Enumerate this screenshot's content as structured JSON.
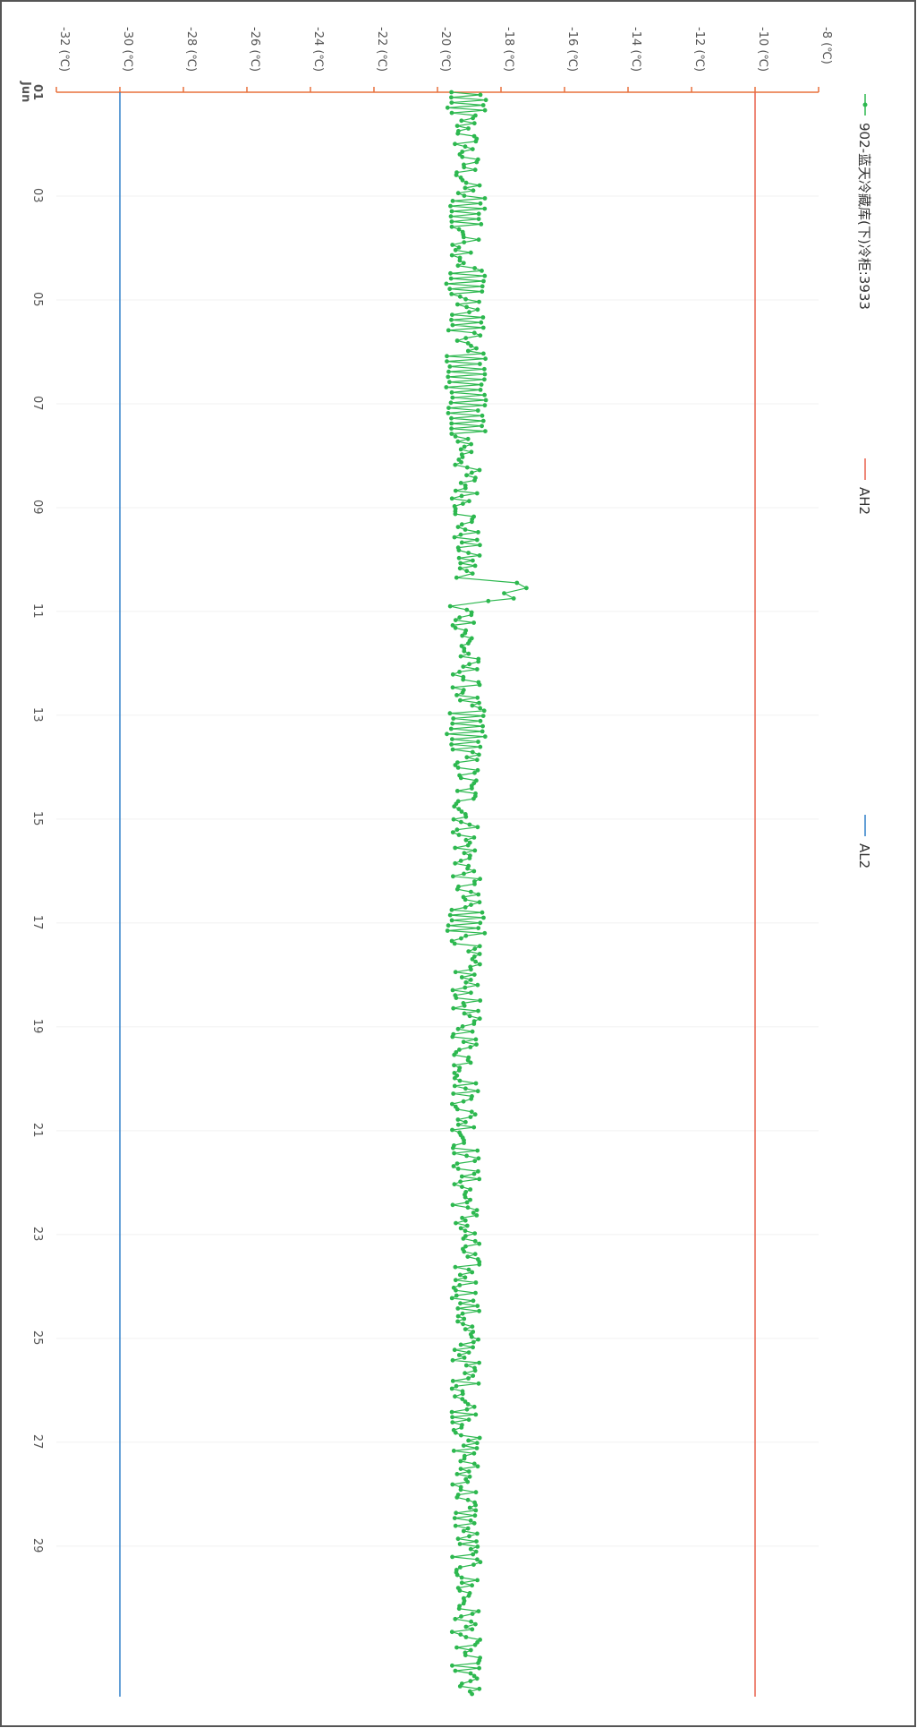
{
  "chart_data": {
    "type": "line",
    "orientation": "rotated-90-clockwise",
    "x_axis": {
      "ticks": [
        {
          "day": 1,
          "label": "01",
          "sublabel": "Jun"
        },
        {
          "day": 3,
          "label": "03"
        },
        {
          "day": 5,
          "label": "05"
        },
        {
          "day": 7,
          "label": "07"
        },
        {
          "day": 9,
          "label": "09"
        },
        {
          "day": 11,
          "label": "11"
        },
        {
          "day": 13,
          "label": "13"
        },
        {
          "day": 15,
          "label": "15"
        },
        {
          "day": 17,
          "label": "17"
        },
        {
          "day": 19,
          "label": "19"
        },
        {
          "day": 21,
          "label": "21"
        },
        {
          "day": 23,
          "label": "23"
        },
        {
          "day": 25,
          "label": "25"
        },
        {
          "day": 27,
          "label": "27"
        },
        {
          "day": 29,
          "label": "29"
        }
      ],
      "range": [
        1,
        31.9
      ]
    },
    "y_axis": {
      "ticks": [
        {
          "value": -32,
          "label": "-32 (℃)"
        },
        {
          "value": -30,
          "label": "-30 (℃)"
        },
        {
          "value": -28,
          "label": "-28 (℃)"
        },
        {
          "value": -26,
          "label": "-26 (℃)"
        },
        {
          "value": -24,
          "label": "-24 (℃)"
        },
        {
          "value": -22,
          "label": "-22 (℃)"
        },
        {
          "value": -20,
          "label": "-20 (℃)"
        },
        {
          "value": -18,
          "label": "-18 (℃)"
        },
        {
          "value": -16,
          "label": "-16 (℃)"
        },
        {
          "value": -14,
          "label": "-14 (℃)"
        },
        {
          "value": -12,
          "label": "-12 (℃)"
        },
        {
          "value": -10,
          "label": "-10 (℃)"
        },
        {
          "value": -8,
          "label": "-8 (℃)"
        }
      ],
      "range": [
        -32,
        -8
      ]
    },
    "grid": true,
    "legend": {
      "placement": "top",
      "entries": [
        {
          "name": "902-蓝天冷藏库(下)冷柜:3933",
          "color": "#2db84f",
          "marker": "dot"
        },
        {
          "name": "AH2",
          "color": "#e8604c",
          "marker": "line"
        },
        {
          "name": "AL2",
          "color": "#2f7fc8",
          "marker": "line"
        }
      ]
    },
    "series": [
      {
        "name": "902-蓝天冷藏库(下)冷柜:3933",
        "color": "#2db84f",
        "generated": {
          "x_start": 1.0,
          "x_end": 31.85,
          "points": 620,
          "baseline": -19.1,
          "amplitude": 0.45,
          "dense_segments": [
            [
              1.0,
              1.4
            ],
            [
              3.0,
              3.6
            ],
            [
              4.4,
              4.9
            ],
            [
              5.3,
              5.6
            ],
            [
              6.0,
              7.6
            ],
            [
              12.9,
              13.7
            ],
            [
              16.7,
              17.2
            ]
          ],
          "spike": [
            {
              "x": 10.35,
              "y": -19.4
            },
            {
              "x": 10.45,
              "y": -17.5
            },
            {
              "x": 10.55,
              "y": -17.2
            },
            {
              "x": 10.65,
              "y": -17.9
            },
            {
              "x": 10.75,
              "y": -17.6
            },
            {
              "x": 10.8,
              "y": -18.4
            },
            {
              "x": 10.9,
              "y": -19.6
            }
          ]
        }
      },
      {
        "name": "AH2",
        "color": "#e8604c",
        "type": "hline",
        "value": -10
      },
      {
        "name": "AL2",
        "color": "#2f7fc8",
        "type": "hline",
        "value": -30
      }
    ]
  }
}
